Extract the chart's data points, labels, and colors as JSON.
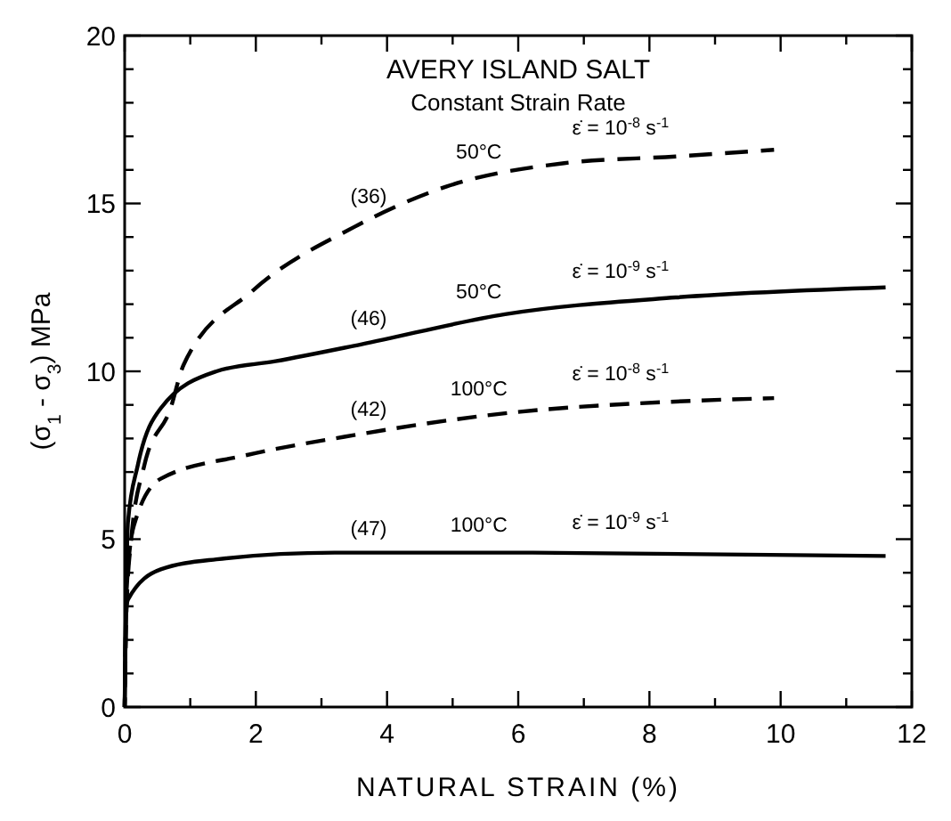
{
  "chart_data": {
    "type": "line",
    "title": "AVERY ISLAND SALT",
    "subtitle": "Constant Strain Rate",
    "xlabel": "NATURAL STRAIN (%)",
    "ylabel": "(σ$_{1}$ - σ$_{3}$) MPa",
    "xlim": [
      0,
      12
    ],
    "ylim": [
      0,
      20
    ],
    "xticks": [
      0,
      {
        "value": 1,
        "label": null
      },
      2,
      {
        "value": 3,
        "label": null
      },
      4,
      {
        "value": 5,
        "label": null
      },
      6,
      {
        "value": 7,
        "label": null
      },
      8,
      {
        "value": 9,
        "label": null
      },
      10,
      {
        "value": 11,
        "label": null
      },
      12
    ],
    "yticks": [
      0,
      {
        "value": 1,
        "label": null
      },
      {
        "value": 2,
        "label": null
      },
      {
        "value": 3,
        "label": null
      },
      {
        "value": 4,
        "label": null
      },
      5,
      {
        "value": 6,
        "label": null
      },
      {
        "value": 7,
        "label": null
      },
      {
        "value": 8,
        "label": null
      },
      {
        "value": 9,
        "label": null
      },
      10,
      {
        "value": 11,
        "label": null
      },
      {
        "value": 12,
        "label": null
      },
      {
        "value": 13,
        "label": null
      },
      {
        "value": 14,
        "label": null
      },
      15,
      {
        "value": 16,
        "label": null
      },
      {
        "value": 17,
        "label": null
      },
      {
        "value": 18,
        "label": null
      },
      {
        "value": 19,
        "label": null
      },
      20
    ],
    "grid": false,
    "series": [
      {
        "color": "#000000",
        "line_style": "dashed",
        "x": [
          0,
          0.03,
          0.1,
          0.3,
          0.7,
          0.9,
          1.95,
          3.5,
          4.9,
          6.7,
          8.4,
          9.9
        ],
        "values": [
          0,
          3,
          5,
          7.2,
          8.9,
          10.2,
          12.4,
          14.3,
          15.5,
          16.2,
          16.4,
          16.6
        ]
      },
      {
        "color": "#000000",
        "line_style": "solid",
        "x": [
          0,
          0.02,
          0.05,
          0.2,
          0.55,
          1.4,
          2.3,
          3.6,
          5.8,
          8.4,
          11.6
        ],
        "values": [
          0,
          3,
          5.5,
          7.2,
          8.9,
          10,
          10.3,
          10.8,
          11.7,
          12.2,
          12.5
        ]
      },
      {
        "color": "#000000",
        "line_style": "dashed",
        "x": [
          0,
          0.03,
          0.14,
          0.55,
          1.85,
          3.35,
          5.8,
          8.4,
          9.9
        ],
        "values": [
          0,
          3.5,
          5.4,
          6.8,
          7.5,
          8.05,
          8.75,
          9.1,
          9.2
        ]
      },
      {
        "color": "#000000",
        "line_style": "solid",
        "x": [
          0,
          0.02,
          0.05,
          0.55,
          1.4,
          3.2,
          6,
          11.6
        ],
        "values": [
          0,
          2.8,
          3.2,
          4.1,
          4.4,
          4.6,
          4.6,
          4.5
        ]
      }
    ],
    "annotations": [
      "(36)",
      "50°C",
      "ε̇ = 10$^{-8}$ s$^{-1}$",
      "(46)",
      "50°C",
      "ε̇ = 10$^{-9}$ s$^{-1}$",
      "(42)",
      "100°C",
      "ε̇ = 10$^{-8}$ s$^{-1}$",
      "(47)",
      "100°C",
      "ε̇ = 10$^{-9}$ s$^{-1}$"
    ]
  }
}
